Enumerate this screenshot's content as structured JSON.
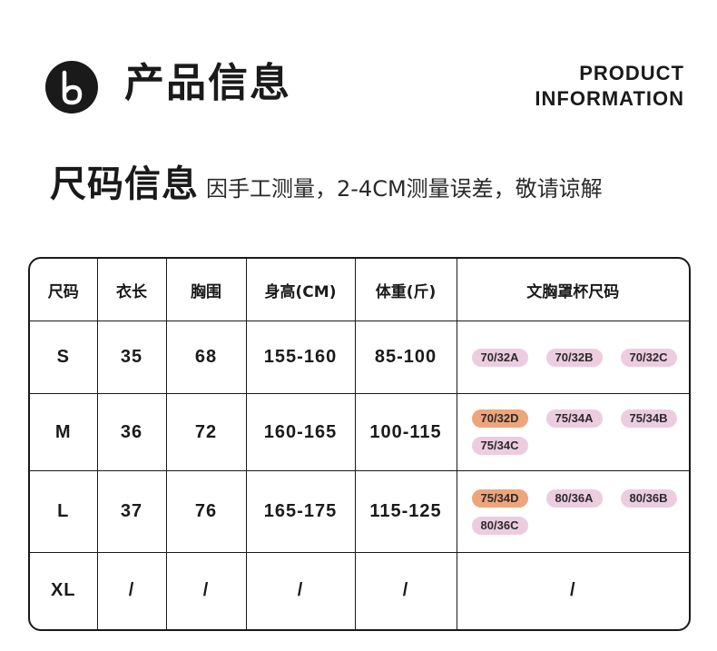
{
  "header": {
    "logo_icon": "b-circle-logo-icon",
    "title_cn": "产品信息",
    "title_en_line1": "PRODUCT",
    "title_en_line2": "INFORMATION"
  },
  "subtitle": {
    "main": "尺码信息",
    "note": "因手工测量，2-4CM测量误差，敬请谅解"
  },
  "table": {
    "headers": [
      "尺码",
      "衣长",
      "胸围",
      "身高(CM)",
      "体重(斤)",
      "文胸罩杯尺码"
    ],
    "rows": [
      {
        "size": "S",
        "length": "35",
        "bust": "68",
        "height": "155-160",
        "weight": "85-100",
        "cups": [
          {
            "label": "70/32A",
            "highlight": false
          },
          {
            "label": "70/32B",
            "highlight": false
          },
          {
            "label": "70/32C",
            "highlight": false
          }
        ]
      },
      {
        "size": "M",
        "length": "36",
        "bust": "72",
        "height": "160-165",
        "weight": "100-115",
        "cups": [
          {
            "label": "70/32D",
            "highlight": true
          },
          {
            "label": "75/34A",
            "highlight": false
          },
          {
            "label": "75/34B",
            "highlight": false
          },
          {
            "label": "75/34C",
            "highlight": false
          }
        ]
      },
      {
        "size": "L",
        "length": "37",
        "bust": "76",
        "height": "165-175",
        "weight": "115-125",
        "cups": [
          {
            "label": "75/34D",
            "highlight": true
          },
          {
            "label": "80/36A",
            "highlight": false
          },
          {
            "label": "80/36B",
            "highlight": false
          },
          {
            "label": "80/36C",
            "highlight": false
          }
        ]
      },
      {
        "size": "XL",
        "length": "/",
        "bust": "/",
        "height": "/",
        "weight": "/",
        "cups_text": "/"
      }
    ],
    "colors": {
      "cup_default": "#eccde0",
      "cup_highlight": "#eda57c",
      "border": "#1a1a1a"
    }
  }
}
